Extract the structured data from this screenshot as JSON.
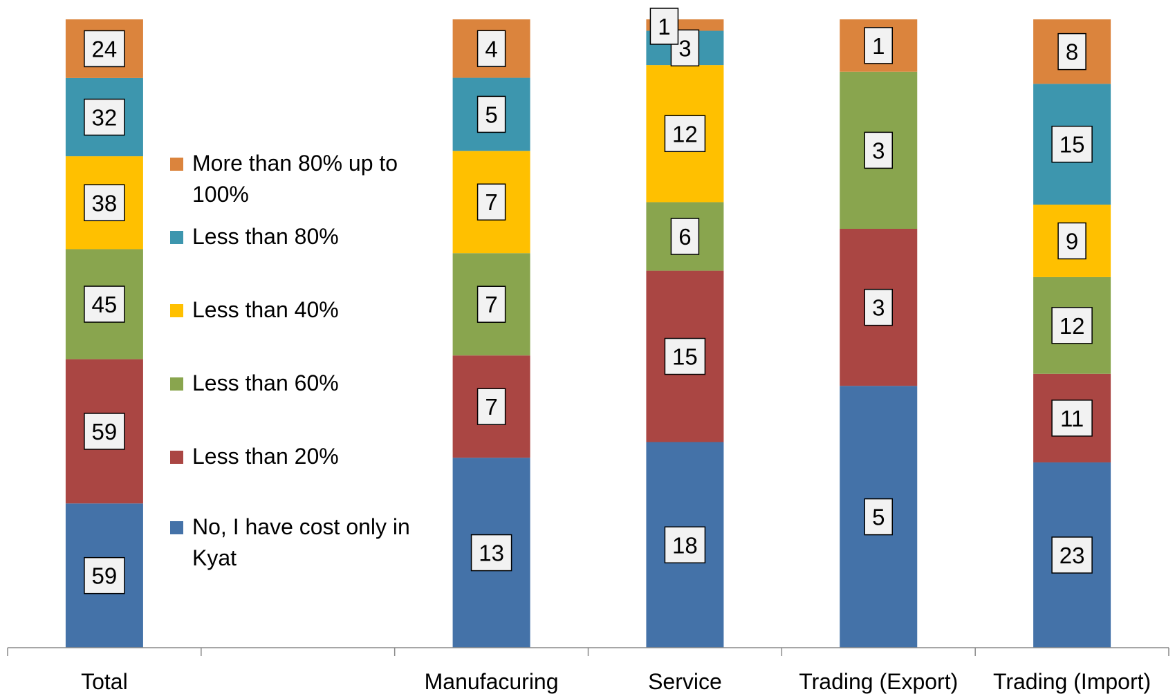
{
  "chart_data": {
    "type": "bar",
    "stacked": true,
    "categories": [
      "Total",
      "",
      "Manufacuring",
      "Service",
      "Trading (Export)",
      "Trading (Import)"
    ],
    "series": [
      {
        "name": "No, I have cost only in Kyat",
        "color": "#4472a8",
        "values": [
          59,
          null,
          13,
          18,
          5,
          23
        ]
      },
      {
        "name": "Less than 20%",
        "color": "#aa4643",
        "values": [
          59,
          null,
          7,
          15,
          3,
          11
        ]
      },
      {
        "name": "Less than 60%",
        "color": "#89a54e",
        "values": [
          45,
          null,
          7,
          6,
          3,
          12
        ]
      },
      {
        "name": "Less than 40%",
        "color": "#ffc000",
        "values": [
          38,
          null,
          7,
          12,
          null,
          9
        ]
      },
      {
        "name": "Less than 80%",
        "color": "#3d96ae",
        "values": [
          32,
          null,
          5,
          3,
          null,
          15
        ]
      },
      {
        "name": "More than 80% up to 100%",
        "color": "#db843d",
        "values": [
          24,
          null,
          4,
          1,
          1,
          8
        ]
      }
    ],
    "legend": {
      "position": "left-center",
      "order": [
        "More than 80% up to 100%",
        "Less than 80%",
        "Less than 40%",
        "Less than 60%",
        "Less than 20%",
        "No, I have cost only in Kyat"
      ]
    },
    "data_labels": true,
    "normalized_100_percent": true,
    "grid": false
  }
}
